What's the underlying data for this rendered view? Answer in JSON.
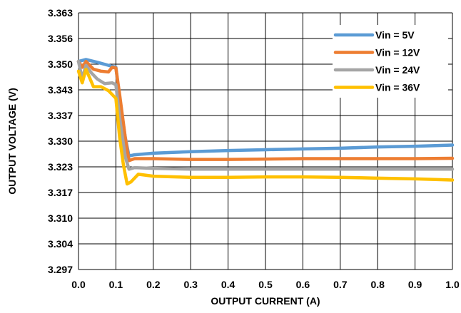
{
  "chart_data": {
    "type": "line",
    "title": "",
    "xlabel": "OUTPUT CURRENT (A)",
    "ylabel": "OUTPUT VOLTAGE (V)",
    "xlim": [
      0.0,
      1.0
    ],
    "ylim": [
      3.297,
      3.363
    ],
    "x_ticks": [
      0.0,
      0.1,
      0.2,
      0.3,
      0.4,
      0.5,
      0.6,
      0.7,
      0.8,
      0.9,
      1.0
    ],
    "x_tick_labels": [
      "0.0",
      "0.1",
      "0.2",
      "0.3",
      "0.4",
      "0.5",
      "0.6",
      "0.7",
      "0.8",
      "0.9",
      "1.0"
    ],
    "y_ticks": [
      3.297,
      3.304,
      3.31,
      3.317,
      3.323,
      3.33,
      3.337,
      3.343,
      3.35,
      3.356,
      3.363
    ],
    "y_tick_labels": [
      "3.297",
      "3.304",
      "3.310",
      "3.317",
      "3.323",
      "3.330",
      "3.337",
      "3.343",
      "3.350",
      "3.356",
      "3.363"
    ],
    "grid": true,
    "legend_position": "top-right",
    "series": [
      {
        "name": "Vin = 5V",
        "color": "#5B9BD5",
        "x": [
          0.0,
          0.02,
          0.05,
          0.08,
          0.1,
          0.11,
          0.125,
          0.135,
          0.15,
          0.2,
          0.3,
          0.4,
          0.5,
          0.6,
          0.7,
          0.8,
          0.9,
          1.0
        ],
        "y": [
          3.3505,
          3.351,
          3.3503,
          3.3495,
          3.349,
          3.341,
          3.331,
          3.3262,
          3.3265,
          3.3269,
          3.3273,
          3.3276,
          3.3278,
          3.328,
          3.3282,
          3.3285,
          3.3287,
          3.329
        ]
      },
      {
        "name": "Vin = 12V",
        "color": "#ED7D31",
        "x": [
          0.0,
          0.01,
          0.02,
          0.04,
          0.06,
          0.08,
          0.09,
          0.1,
          0.11,
          0.125,
          0.135,
          0.15,
          0.2,
          0.3,
          0.4,
          0.5,
          0.6,
          0.7,
          0.8,
          0.9,
          1.0
        ],
        "y": [
          3.3505,
          3.349,
          3.3505,
          3.3485,
          3.348,
          3.3478,
          3.349,
          3.3488,
          3.342,
          3.331,
          3.325,
          3.3255,
          3.3255,
          3.3253,
          3.3253,
          3.3254,
          3.3255,
          3.3255,
          3.3255,
          3.3255,
          3.3256
        ]
      },
      {
        "name": "Vin = 24V",
        "color": "#A5A5A5",
        "x": [
          0.0,
          0.01,
          0.02,
          0.035,
          0.05,
          0.07,
          0.09,
          0.1,
          0.11,
          0.125,
          0.135,
          0.15,
          0.2,
          0.3,
          0.4,
          0.5,
          0.6,
          0.7,
          0.8,
          0.9,
          1.0
        ],
        "y": [
          3.3505,
          3.346,
          3.3495,
          3.3475,
          3.346,
          3.3448,
          3.345,
          3.3445,
          3.336,
          3.326,
          3.3228,
          3.3232,
          3.323,
          3.3228,
          3.3228,
          3.3228,
          3.3228,
          3.3228,
          3.3228,
          3.3228,
          3.3228
        ]
      },
      {
        "name": "Vin = 36V",
        "color": "#FFC000",
        "x": [
          0.0,
          0.01,
          0.02,
          0.04,
          0.06,
          0.08,
          0.1,
          0.11,
          0.12,
          0.13,
          0.14,
          0.16,
          0.2,
          0.3,
          0.4,
          0.5,
          0.6,
          0.7,
          0.8,
          0.9,
          1.0
        ],
        "y": [
          3.348,
          3.345,
          3.3485,
          3.344,
          3.344,
          3.343,
          3.341,
          3.331,
          3.324,
          3.319,
          3.3195,
          3.3215,
          3.321,
          3.3207,
          3.3207,
          3.3208,
          3.3208,
          3.3207,
          3.3205,
          3.3203,
          3.32
        ]
      }
    ]
  }
}
